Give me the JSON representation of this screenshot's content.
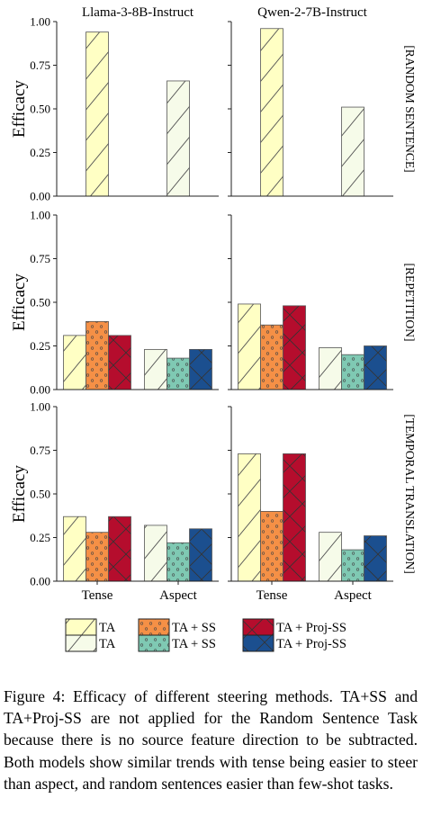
{
  "chart_data": {
    "type": "bar",
    "columns": [
      "Llama-3-8B-Instruct",
      "Qwen-2-7B-Instruct"
    ],
    "rows": [
      "[RANDOM SENTENCE]",
      "[REPETITION]",
      "[TEMPORAL TRANSLATION]"
    ],
    "categories": [
      "Tense",
      "Aspect"
    ],
    "ylabel": "Efficacy",
    "ylim": [
      0,
      1
    ],
    "yticks": [
      "0.00",
      "0.25",
      "0.50",
      "0.75",
      "1.00"
    ],
    "panels": [
      {
        "row": 0,
        "col": 0,
        "values": {
          "TA": [
            0.94,
            0.66
          ],
          "TA + SS": [
            null,
            null
          ],
          "TA + Proj-SS": [
            null,
            null
          ]
        }
      },
      {
        "row": 0,
        "col": 1,
        "values": {
          "TA": [
            0.96,
            0.51
          ],
          "TA + SS": [
            null,
            null
          ],
          "TA + Proj-SS": [
            null,
            null
          ]
        }
      },
      {
        "row": 1,
        "col": 0,
        "values": {
          "TA": [
            0.31,
            0.23
          ],
          "TA + SS": [
            0.39,
            0.18
          ],
          "TA + Proj-SS": [
            0.31,
            0.23
          ]
        }
      },
      {
        "row": 1,
        "col": 1,
        "values": {
          "TA": [
            0.49,
            0.24
          ],
          "TA + SS": [
            0.37,
            0.2
          ],
          "TA + Proj-SS": [
            0.48,
            0.25
          ]
        }
      },
      {
        "row": 2,
        "col": 0,
        "values": {
          "TA": [
            0.37,
            0.32
          ],
          "TA + SS": [
            0.28,
            0.22
          ],
          "TA + Proj-SS": [
            0.37,
            0.3
          ]
        }
      },
      {
        "row": 2,
        "col": 1,
        "values": {
          "TA": [
            0.73,
            0.28
          ],
          "TA + SS": [
            0.4,
            0.18
          ],
          "TA + Proj-SS": [
            0.73,
            0.26
          ]
        }
      }
    ],
    "series_names": [
      "TA",
      "TA + SS",
      "TA + Proj-SS"
    ],
    "colors": {
      "TA": [
        "#ffffc4",
        "#f6fbe9"
      ],
      "TA + SS": [
        "#f59046",
        "#7fc9b3"
      ],
      "TA + Proj-SS": [
        "#b50d2d",
        "#1b4f8f"
      ]
    },
    "legend": [
      {
        "label": "TA",
        "pattern": "hatch"
      },
      {
        "label": "TA",
        "pattern": "hatch"
      },
      {
        "label": "TA + SS",
        "pattern": "dots"
      },
      {
        "label": "TA + SS",
        "pattern": "dots"
      },
      {
        "label": "TA + Proj-SS",
        "pattern": "cross"
      },
      {
        "label": "TA + Proj-SS",
        "pattern": "cross"
      }
    ],
    "legend_placement": "bottom",
    "grid": false
  },
  "caption": "Figure 4: Efficacy of different steering methods. TA+SS and TA+Proj-SS are not applied for the Random Sentence Task because there is no source feature direction to be subtracted. Both models show similar trends with tense being easier to steer than aspect, and random sentences easier than few-shot tasks."
}
